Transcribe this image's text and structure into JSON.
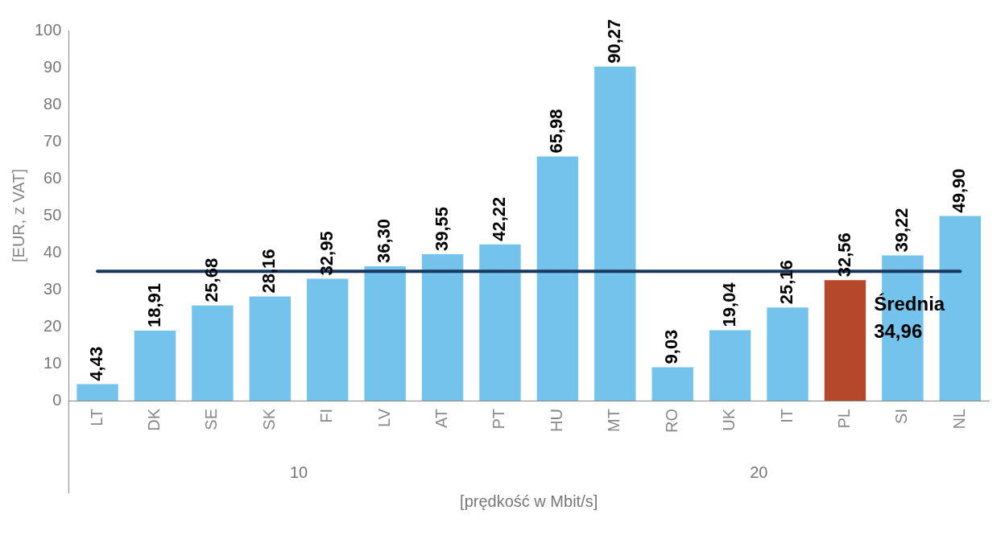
{
  "chart_data": {
    "type": "bar",
    "xlabel": "[prędkość w Mbit/s]",
    "ylabel": "[EUR, z VAT]",
    "categories": [
      "LT",
      "DK",
      "SE",
      "SK",
      "FI",
      "LV",
      "AT",
      "PT",
      "HU",
      "MT",
      "RO",
      "UK",
      "IT",
      "PL",
      "SI",
      "NL"
    ],
    "values": [
      4.43,
      18.91,
      25.68,
      28.16,
      32.95,
      36.3,
      39.55,
      42.22,
      65.98,
      90.27,
      9.03,
      19.04,
      25.16,
      32.56,
      39.22,
      49.9
    ],
    "value_labels": [
      "4,43",
      "18,91",
      "25,68",
      "28,16",
      "32,95",
      "36,30",
      "39,55",
      "42,22",
      "65,98",
      "90,27",
      "9,03",
      "19,04",
      "25,16",
      "32,56",
      "39,22",
      "49,90"
    ],
    "colors": [
      "#74c3ec",
      "#74c3ec",
      "#74c3ec",
      "#74c3ec",
      "#74c3ec",
      "#74c3ec",
      "#74c3ec",
      "#74c3ec",
      "#74c3ec",
      "#74c3ec",
      "#74c3ec",
      "#74c3ec",
      "#74c3ec",
      "#b5472a",
      "#74c3ec",
      "#74c3ec"
    ],
    "ylim": [
      0,
      100
    ],
    "yticks": [
      0,
      10,
      20,
      30,
      40,
      50,
      60,
      70,
      80,
      90,
      100
    ],
    "grid": false,
    "legend": false,
    "ref_lines": [
      {
        "axis": "y",
        "value": 34.96,
        "label": "Średnia 34,96",
        "color": "#17375e"
      }
    ],
    "annotations": [
      "10",
      "20"
    ]
  }
}
